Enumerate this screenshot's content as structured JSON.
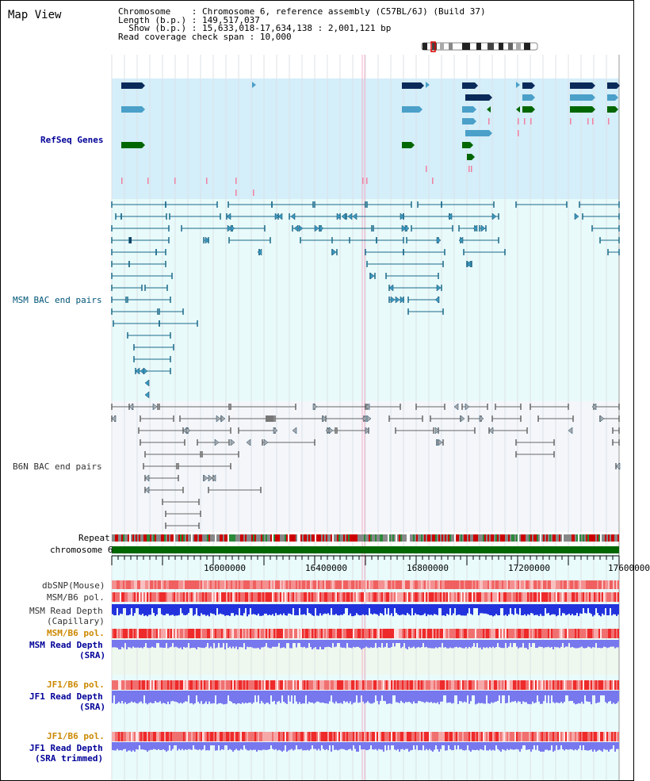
{
  "title": "Map View",
  "info": {
    "chromosome_key": "Chromosome",
    "chromosome_val": "Chromosome 6, reference assembly (C57BL/6J) (Build 37)",
    "length_key": "Length (b.p.)",
    "length_val": "149,517,037",
    "show_key": "Show (b.p.)",
    "show_val": "15,633,018-17,634,138 : 2,001,121 bp",
    "coverage_key": "Read coverage check span",
    "coverage_val": "10,000"
  },
  "tracks": {
    "refseq": "RefSeq Genes",
    "msm_bac": "MSM BAC end pairs",
    "b6n_bac": "B6N BAC end pairs",
    "repeat": "Repeat",
    "chromosome": "chromosome 6",
    "dbsnp": "dbSNP(Mouse)",
    "msm_b6_pol": "MSM/B6 pol.",
    "msm_depth_cap_1": "MSM Read Depth",
    "msm_depth_cap_2": "(Capillary)",
    "msm_b6_pol_sra": "MSM/B6 pol.",
    "msm_depth_sra_1": "MSM Read Depth",
    "msm_depth_sra_2": "(SRA)",
    "jf1_pol_1": "JF1/B6 pol.",
    "jf1_depth_1": "JF1 Read Depth",
    "jf1_depth_1b": "(SRA)",
    "jf1_pol_2": "JF1/B6 pol.",
    "jf1_depth_2": "JF1 Read Depth",
    "jf1_depth_2b": "(SRA trimmed)"
  },
  "axis": {
    "ticks": [
      "16000000",
      "16400000",
      "16800000",
      "17200000",
      "17600000"
    ]
  },
  "colors": {
    "refseq_bg": "#d4eefa",
    "bac_bg": "#e8fafa",
    "b6n_bg": "#f4f6fa",
    "gene_dark": "#0a2a5a",
    "gene_mid": "#4aa0c8",
    "gene_green": "#006600",
    "msm_line": "#1a6a8a",
    "b6n_line": "#666666",
    "depth_blue": "#2233dd",
    "depth_light": "#7777ee"
  }
}
